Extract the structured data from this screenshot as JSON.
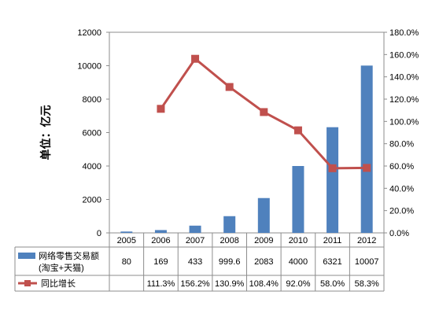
{
  "chart_data": {
    "type": "bar+line",
    "categories": [
      "2005",
      "2006",
      "2007",
      "2008",
      "2009",
      "2010",
      "2011",
      "2012"
    ],
    "series": [
      {
        "name": "网络零售交易额",
        "name_line2": "(淘宝+天猫)",
        "type": "bar",
        "axis": "left",
        "color": "#4f81bd",
        "values": [
          80,
          169,
          433,
          999.6,
          2083,
          4000,
          6321,
          10007
        ],
        "value_labels": [
          "80",
          "169",
          "433",
          "999.6",
          "2083",
          "4000",
          "6321",
          "10007"
        ]
      },
      {
        "name": "同比增长",
        "type": "line",
        "axis": "right",
        "color": "#c0504d",
        "values": [
          null,
          111.3,
          156.2,
          130.9,
          108.4,
          92.0,
          58.0,
          58.3
        ],
        "value_labels": [
          "",
          "111.3%",
          "156.2%",
          "130.9%",
          "108.4%",
          "92.0%",
          "58.0%",
          "58.3%"
        ]
      }
    ],
    "ylabel": "单位：亿元",
    "y_left": {
      "range": [
        0,
        12000
      ],
      "ticks": [
        "0",
        "2000",
        "4000",
        "6000",
        "8000",
        "10000",
        "12000"
      ]
    },
    "y_right": {
      "range": [
        0,
        180
      ],
      "ticks": [
        "0.0%",
        "20.0%",
        "40.0%",
        "60.0%",
        "80.0%",
        "100.0%",
        "120.0%",
        "140.0%",
        "160.0%",
        "180.0%"
      ]
    },
    "grid": false,
    "legend": "data-table-below"
  }
}
